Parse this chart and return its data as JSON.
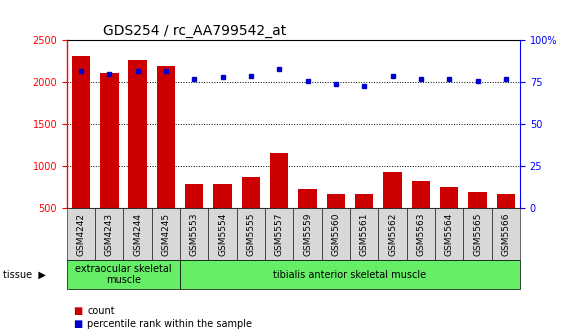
{
  "title": "GDS254 / rc_AA799542_at",
  "categories": [
    "GSM4242",
    "GSM4243",
    "GSM4244",
    "GSM4245",
    "GSM5553",
    "GSM5554",
    "GSM5555",
    "GSM5557",
    "GSM5559",
    "GSM5560",
    "GSM5561",
    "GSM5562",
    "GSM5563",
    "GSM5564",
    "GSM5565",
    "GSM5566"
  ],
  "counts": [
    2310,
    2105,
    2270,
    2200,
    790,
    790,
    875,
    1155,
    730,
    670,
    665,
    930,
    820,
    750,
    700,
    665
  ],
  "percentile": [
    82,
    80,
    82,
    82,
    77,
    78,
    79,
    83,
    76,
    74,
    73,
    79,
    77,
    77,
    76,
    77
  ],
  "bar_color": "#cc0000",
  "dot_color": "#0000cc",
  "ylim_left": [
    500,
    2500
  ],
  "ylim_right": [
    0,
    100
  ],
  "yticks_left": [
    500,
    1000,
    1500,
    2000,
    2500
  ],
  "yticks_right": [
    0,
    25,
    50,
    75,
    100
  ],
  "tissue_groups": [
    {
      "label": "extraocular skeletal\nmuscle",
      "start": 0,
      "end": 4
    },
    {
      "label": "tibialis anterior skeletal muscle",
      "start": 4,
      "end": 16
    }
  ],
  "tissue_color": "#66ee66",
  "tissue_label": "tissue",
  "xtick_bg": "#d8d8d8",
  "plot_bg": "#ffffff",
  "grid_color": "#000000",
  "title_fontsize": 10,
  "tick_fontsize": 7,
  "label_fontsize": 7
}
